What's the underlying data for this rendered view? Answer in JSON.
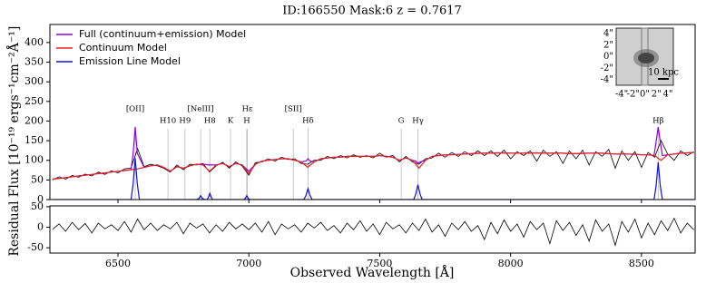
{
  "chart_data": [
    {
      "type": "line",
      "title": "ID:166550  Mask:6  z = 0.7617",
      "y_label": "Flux [10⁻¹⁹ ergs⁻¹cm⁻²Å⁻¹]",
      "xlim": [
        6240,
        8705
      ],
      "ylim": [
        0,
        446
      ],
      "xticks": [
        6500,
        7000,
        7500,
        8000,
        8500
      ],
      "yticks": [
        0,
        50,
        100,
        150,
        200,
        250,
        300,
        350,
        400
      ],
      "legend": "upper left",
      "series": [
        {
          "name": "Full (continuum+emission) Model",
          "color": "#9400d3",
          "x": [
            6250,
            6275,
            6300,
            6325,
            6350,
            6375,
            6400,
            6425,
            6450,
            6475,
            6500,
            6525,
            6550,
            6558,
            6566,
            6574,
            6600,
            6625,
            6650,
            6675,
            6700,
            6725,
            6750,
            6775,
            6800,
            6825,
            6850,
            6875,
            6900,
            6925,
            6950,
            6975,
            7000,
            7025,
            7050,
            7075,
            7100,
            7125,
            7150,
            7175,
            7200,
            7218,
            7226,
            7234,
            7250,
            7275,
            7300,
            7325,
            7350,
            7375,
            7400,
            7425,
            7450,
            7475,
            7500,
            7525,
            7550,
            7575,
            7600,
            7625,
            7638,
            7646,
            7654,
            7675,
            7700,
            7725,
            7750,
            7800,
            7850,
            7900,
            7950,
            8000,
            8050,
            8100,
            8150,
            8200,
            8250,
            8300,
            8350,
            8400,
            8450,
            8500,
            8525,
            8548,
            8556,
            8564,
            8572,
            8580,
            8600,
            8650,
            8700
          ],
          "values": [
            52,
            54,
            56,
            58,
            60,
            62,
            64,
            66,
            68,
            70,
            72,
            74,
            76,
            117,
            185,
            118,
            82,
            86,
            88,
            82,
            72,
            84,
            80,
            86,
            90,
            90,
            88,
            88,
            92,
            84,
            92,
            88,
            72,
            90,
            98,
            100,
            102,
            104,
            104,
            100,
            96,
            98,
            104,
            98,
            96,
            104,
            106,
            108,
            108,
            110,
            110,
            110,
            110,
            110,
            112,
            110,
            108,
            100,
            106,
            100,
            98,
            92,
            96,
            100,
            110,
            112,
            114,
            115,
            117,
            118,
            119,
            118,
            118,
            119,
            118,
            118,
            117,
            118,
            118,
            116,
            116,
            114,
            114,
            112,
            147,
            185,
            147,
            112,
            114,
            118,
            120
          ]
        },
        {
          "name": "Continuum Model",
          "color": "#e8231e",
          "x": [
            6250,
            6275,
            6300,
            6325,
            6350,
            6375,
            6400,
            6425,
            6450,
            6475,
            6500,
            6525,
            6550,
            6575,
            6600,
            6625,
            6650,
            6675,
            6700,
            6725,
            6750,
            6775,
            6800,
            6825,
            6850,
            6875,
            6900,
            6925,
            6950,
            6975,
            7000,
            7025,
            7050,
            7075,
            7100,
            7125,
            7150,
            7175,
            7200,
            7225,
            7250,
            7275,
            7300,
            7325,
            7350,
            7375,
            7400,
            7425,
            7450,
            7475,
            7500,
            7525,
            7550,
            7575,
            7600,
            7625,
            7650,
            7675,
            7700,
            7725,
            7750,
            7775,
            7800,
            7825,
            7850,
            7875,
            7900,
            7925,
            7950,
            7975,
            8000,
            8025,
            8050,
            8075,
            8100,
            8125,
            8150,
            8175,
            8200,
            8225,
            8250,
            8275,
            8300,
            8325,
            8350,
            8375,
            8400,
            8425,
            8450,
            8475,
            8500,
            8525,
            8550,
            8575,
            8600,
            8625,
            8650,
            8675,
            8700
          ],
          "values": [
            52,
            54,
            56,
            58,
            60,
            62,
            64,
            66,
            68,
            70,
            72,
            74,
            76,
            78,
            82,
            86,
            88,
            82,
            72,
            84,
            80,
            86,
            90,
            88,
            72,
            88,
            92,
            84,
            92,
            88,
            66,
            90,
            98,
            100,
            102,
            104,
            104,
            100,
            96,
            82,
            96,
            104,
            106,
            108,
            108,
            110,
            110,
            110,
            110,
            110,
            112,
            110,
            108,
            100,
            106,
            100,
            80,
            100,
            110,
            112,
            114,
            114,
            115,
            116,
            117,
            118,
            118,
            118,
            119,
            119,
            118,
            118,
            118,
            118,
            119,
            118,
            118,
            119,
            118,
            117,
            117,
            118,
            118,
            118,
            118,
            117,
            116,
            116,
            116,
            116,
            114,
            114,
            112,
            100,
            114,
            116,
            118,
            119,
            120
          ]
        },
        {
          "name": "Emission Line Model",
          "color": "#1010e0",
          "x": [
            6250,
            6550,
            6558,
            6566,
            6574,
            6582,
            6800,
            6810,
            6816,
            6822,
            6832,
            6840,
            6845,
            6851,
            6857,
            6862,
            6980,
            6986,
            6992,
            6998,
            7004,
            7210,
            7218,
            7226,
            7234,
            7242,
            7630,
            7638,
            7646,
            7654,
            7662,
            8548,
            8556,
            8564,
            8572,
            8580,
            8700
          ],
          "values": [
            0,
            0,
            40,
            105,
            40,
            0,
            0,
            3,
            10,
            3,
            0,
            0,
            5,
            16,
            5,
            0,
            0,
            3,
            10,
            3,
            0,
            0,
            10,
            28,
            10,
            0,
            0,
            14,
            38,
            14,
            0,
            0,
            35,
            95,
            35,
            0,
            0
          ]
        },
        {
          "color": "#000000",
          "x": [
            6250,
            6275,
            6300,
            6325,
            6350,
            6375,
            6400,
            6425,
            6450,
            6475,
            6500,
            6525,
            6550,
            6575,
            6600,
            6625,
            6650,
            6675,
            6700,
            6725,
            6750,
            6775,
            6800,
            6825,
            6850,
            6875,
            6900,
            6925,
            6950,
            6975,
            7000,
            7025,
            7050,
            7075,
            7100,
            7125,
            7150,
            7175,
            7200,
            7225,
            7250,
            7275,
            7300,
            7325,
            7350,
            7375,
            7400,
            7425,
            7450,
            7475,
            7500,
            7525,
            7550,
            7575,
            7600,
            7625,
            7650,
            7675,
            7700,
            7725,
            7750,
            7775,
            7800,
            7825,
            7850,
            7875,
            7900,
            7925,
            7950,
            7975,
            8000,
            8025,
            8050,
            8075,
            8100,
            8125,
            8150,
            8175,
            8200,
            8225,
            8250,
            8275,
            8300,
            8325,
            8350,
            8375,
            8400,
            8425,
            8450,
            8475,
            8500,
            8525,
            8550,
            8575,
            8600,
            8625,
            8650,
            8675,
            8700
          ],
          "values": [
            50,
            58,
            52,
            61,
            57,
            65,
            60,
            70,
            64,
            73,
            68,
            78,
            80,
            130,
            84,
            90,
            86,
            80,
            70,
            88,
            76,
            90,
            88,
            92,
            70,
            86,
            95,
            80,
            96,
            85,
            62,
            94,
            96,
            104,
            98,
            108,
            102,
            104,
            92,
            90,
            100,
            100,
            110,
            104,
            112,
            106,
            114,
            108,
            112,
            106,
            118,
            108,
            112,
            96,
            110,
            96,
            90,
            104,
            106,
            118,
            108,
            120,
            110,
            122,
            112,
            124,
            112,
            124,
            110,
            126,
            104,
            122,
            112,
            124,
            98,
            126,
            110,
            122,
            92,
            124,
            104,
            126,
            88,
            122,
            110,
            128,
            80,
            124,
            100,
            122,
            82,
            120,
            108,
            150,
            116,
            100,
            124,
            112,
            122
          ]
        }
      ],
      "lines": [
        {
          "label": "[OII]",
          "wavelength": 6566
        },
        {
          "label": "H10",
          "wavelength": 6691
        },
        {
          "label": "H9",
          "wavelength": 6756
        },
        {
          "label": "[NeIII]",
          "wavelength": 6816
        },
        {
          "label": "H8",
          "wavelength": 6851
        },
        {
          "label": "K",
          "wavelength": 6930
        },
        {
          "label": "Hε",
          "wavelength": 6994
        },
        {
          "label": "H",
          "wavelength": 6992
        },
        {
          "label": "[SII]",
          "wavelength": 7170
        },
        {
          "label": "Hδ",
          "wavelength": 7226
        },
        {
          "label": "G",
          "wavelength": 7582
        },
        {
          "label": "Hγ",
          "wavelength": 7646
        },
        {
          "label": "Hβ",
          "wavelength": 8564
        }
      ],
      "inset": {
        "xtick_labels": [
          "-4\"",
          "-2\"",
          "0\"",
          "2\"",
          "4\""
        ],
        "ytick_labels": [
          "4\"",
          "2\"",
          "0\"",
          "-2\"",
          "-4\""
        ],
        "scale_label": "10 kpc"
      }
    },
    {
      "type": "line",
      "y_label": "Residual",
      "x_label": "Observed Wavelength [Å]",
      "xlim": [
        6240,
        8705
      ],
      "ylim": [
        -63,
        52
      ],
      "xticks": [
        6500,
        7000,
        7500,
        8000,
        8500
      ],
      "yticks": [
        -50,
        0,
        50
      ],
      "series": [
        {
          "color": "#000000",
          "x": [
            6250,
            6275,
            6300,
            6325,
            6350,
            6375,
            6400,
            6425,
            6450,
            6475,
            6500,
            6525,
            6550,
            6575,
            6600,
            6625,
            6650,
            6675,
            6700,
            6725,
            6750,
            6775,
            6800,
            6825,
            6850,
            6875,
            6900,
            6925,
            6950,
            6975,
            7000,
            7025,
            7050,
            7075,
            7100,
            7125,
            7150,
            7175,
            7200,
            7225,
            7250,
            7275,
            7300,
            7325,
            7350,
            7375,
            7400,
            7425,
            7450,
            7475,
            7500,
            7525,
            7550,
            7575,
            7600,
            7625,
            7650,
            7675,
            7700,
            7725,
            7750,
            7775,
            7800,
            7825,
            7850,
            7875,
            7900,
            7925,
            7950,
            7975,
            8000,
            8025,
            8050,
            8075,
            8100,
            8125,
            8150,
            8175,
            8200,
            8225,
            8250,
            8275,
            8300,
            8325,
            8350,
            8375,
            8400,
            8425,
            8450,
            8475,
            8500,
            8525,
            8550,
            8575,
            8600,
            8625,
            8650,
            8675,
            8700
          ],
          "values": [
            -5,
            8,
            -10,
            12,
            -6,
            9,
            -14,
            10,
            -4,
            6,
            -8,
            14,
            -12,
            20,
            -6,
            10,
            -8,
            6,
            -4,
            12,
            -16,
            10,
            -2,
            8,
            -14,
            6,
            -10,
            12,
            -4,
            8,
            -6,
            10,
            -12,
            14,
            -18,
            8,
            -4,
            6,
            -12,
            10,
            -2,
            12,
            -8,
            4,
            -14,
            10,
            -6,
            16,
            -10,
            8,
            -18,
            12,
            -4,
            6,
            -14,
            10,
            -8,
            20,
            -12,
            6,
            -22,
            10,
            -6,
            14,
            -10,
            4,
            -30,
            12,
            -16,
            18,
            -10,
            8,
            -24,
            14,
            -6,
            10,
            -40,
            16,
            -8,
            12,
            -20,
            6,
            -34,
            18,
            -10,
            8,
            -44,
            14,
            -12,
            20,
            -26,
            10,
            -18,
            16,
            -8,
            22,
            -14,
            10,
            -6
          ]
        }
      ]
    }
  ]
}
